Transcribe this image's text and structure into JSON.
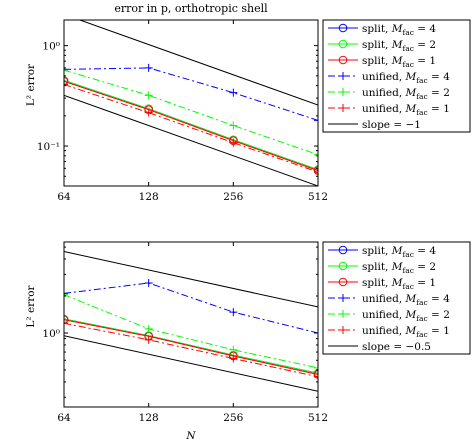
{
  "chart_data": [
    {
      "type": "line",
      "title": "error in p, orthotropic shell",
      "ylabel": "L² error",
      "xlabel": "",
      "xscale": "log2",
      "yscale": "log",
      "xticks": [
        64,
        128,
        256,
        512
      ],
      "xlim": [
        64,
        512
      ],
      "ylim": [
        0.04,
        1.8
      ],
      "yticks": [
        0.1,
        1
      ],
      "ytick_labels": [
        "10⁻¹",
        "10⁰"
      ],
      "grid": false,
      "legend_position": "outside-right",
      "series": [
        {
          "name": "split, M_fac = 4",
          "label_main": "split, ",
          "label_sub": "fac",
          "label_tail": " = 4",
          "color": "#0000ff",
          "dash": "solid",
          "marker": "circle",
          "x": [
            64,
            128,
            256,
            512
          ],
          "y": [
            0.45,
            0.235,
            0.115,
            0.058
          ]
        },
        {
          "name": "split, M_fac = 2",
          "label_main": "split, ",
          "label_sub": "fac",
          "label_tail": " = 2",
          "color": "#00ff00",
          "dash": "solid",
          "marker": "circle",
          "x": [
            64,
            128,
            256,
            512
          ],
          "y": [
            0.45,
            0.235,
            0.115,
            0.058
          ]
        },
        {
          "name": "split, M_fac = 1",
          "label_main": "split, ",
          "label_sub": "fac",
          "label_tail": " = 1",
          "color": "#ff0000",
          "dash": "solid",
          "marker": "circle",
          "x": [
            64,
            128,
            256,
            512
          ],
          "y": [
            0.44,
            0.23,
            0.113,
            0.057
          ]
        },
        {
          "name": "unified, M_fac = 4",
          "label_main": "unified, ",
          "label_sub": "fac",
          "label_tail": " = 4",
          "color": "#0000ff",
          "dash": "dashdot",
          "marker": "plus",
          "x": [
            64,
            128,
            256,
            512
          ],
          "y": [
            0.58,
            0.6,
            0.34,
            0.18
          ]
        },
        {
          "name": "unified, M_fac = 2",
          "label_main": "unified, ",
          "label_sub": "fac",
          "label_tail": " = 2",
          "color": "#00ff00",
          "dash": "dashdot",
          "marker": "plus",
          "x": [
            64,
            128,
            256,
            512
          ],
          "y": [
            0.57,
            0.32,
            0.16,
            0.082
          ]
        },
        {
          "name": "unified, M_fac = 1",
          "label_main": "unified, ",
          "label_sub": "fac",
          "label_tail": " = 1",
          "color": "#ff0000",
          "dash": "dashdot",
          "marker": "plus",
          "x": [
            64,
            128,
            256,
            512
          ],
          "y": [
            0.41,
            0.215,
            0.108,
            0.055
          ]
        },
        {
          "name": "slope = −1",
          "label_main": "slope = −1",
          "label_sub": "",
          "label_tail": "",
          "color": "#000000",
          "dash": "solid",
          "marker": "none",
          "x": [],
          "y": []
        }
      ],
      "reference_lines": [
        {
          "slope": -1,
          "color": "#000000",
          "x": [
            64,
            512
          ],
          "y": [
            2.05,
            0.256
          ]
        },
        {
          "slope": -1,
          "color": "#000000",
          "x": [
            64,
            512
          ],
          "y": [
            0.32,
            0.04
          ]
        }
      ]
    },
    {
      "type": "line",
      "title": "",
      "ylabel": "L² error",
      "xlabel": "N",
      "xscale": "log2",
      "yscale": "log",
      "xticks": [
        64,
        128,
        256,
        512
      ],
      "xlim": [
        64,
        512
      ],
      "ylim": [
        0.25,
        5.5
      ],
      "yticks": [
        1
      ],
      "ytick_labels": [
        "10⁰"
      ],
      "grid": false,
      "legend_position": "outside-right",
      "series": [
        {
          "name": "split, M_fac = 4",
          "label_main": "split, ",
          "label_sub": "fac",
          "label_tail": " = 4",
          "color": "#0000ff",
          "dash": "solid",
          "marker": "circle",
          "x": [
            64,
            128,
            256,
            512
          ],
          "y": [
            1.3,
            0.95,
            0.66,
            0.47
          ]
        },
        {
          "name": "split, M_fac = 2",
          "label_main": "split, ",
          "label_sub": "fac",
          "label_tail": " = 2",
          "color": "#00ff00",
          "dash": "solid",
          "marker": "circle",
          "x": [
            64,
            128,
            256,
            512
          ],
          "y": [
            1.3,
            0.95,
            0.66,
            0.47
          ]
        },
        {
          "name": "split, M_fac = 1",
          "label_main": "split, ",
          "label_sub": "fac",
          "label_tail": " = 1",
          "color": "#ff0000",
          "dash": "solid",
          "marker": "circle",
          "x": [
            64,
            128,
            256,
            512
          ],
          "y": [
            1.28,
            0.94,
            0.65,
            0.46
          ]
        },
        {
          "name": "unified, M_fac = 4",
          "label_main": "unified, ",
          "label_sub": "fac",
          "label_tail": " = 4",
          "color": "#0000ff",
          "dash": "dashdot",
          "marker": "plus",
          "x": [
            64,
            128,
            256,
            512
          ],
          "y": [
            2.1,
            2.55,
            1.48,
            1.0
          ]
        },
        {
          "name": "unified, M_fac = 2",
          "label_main": "unified, ",
          "label_sub": "fac",
          "label_tail": " = 2",
          "color": "#00ff00",
          "dash": "dashdot",
          "marker": "plus",
          "x": [
            64,
            128,
            256,
            512
          ],
          "y": [
            2.05,
            1.08,
            0.73,
            0.52
          ]
        },
        {
          "name": "unified, M_fac = 1",
          "label_main": "unified, ",
          "label_sub": "fac",
          "label_tail": " = 1",
          "color": "#ff0000",
          "dash": "dashdot",
          "marker": "plus",
          "x": [
            64,
            128,
            256,
            512
          ],
          "y": [
            1.2,
            0.88,
            0.62,
            0.44
          ]
        },
        {
          "name": "slope = −0.5",
          "label_main": "slope = −0.5",
          "label_sub": "",
          "label_tail": "",
          "color": "#000000",
          "dash": "solid",
          "marker": "none",
          "x": [],
          "y": []
        }
      ],
      "reference_lines": [
        {
          "slope": -0.5,
          "color": "#000000",
          "x": [
            64,
            512
          ],
          "y": [
            4.6,
            1.63
          ]
        },
        {
          "slope": -0.5,
          "color": "#000000",
          "x": [
            64,
            512
          ],
          "y": [
            0.95,
            0.336
          ]
        }
      ]
    }
  ]
}
